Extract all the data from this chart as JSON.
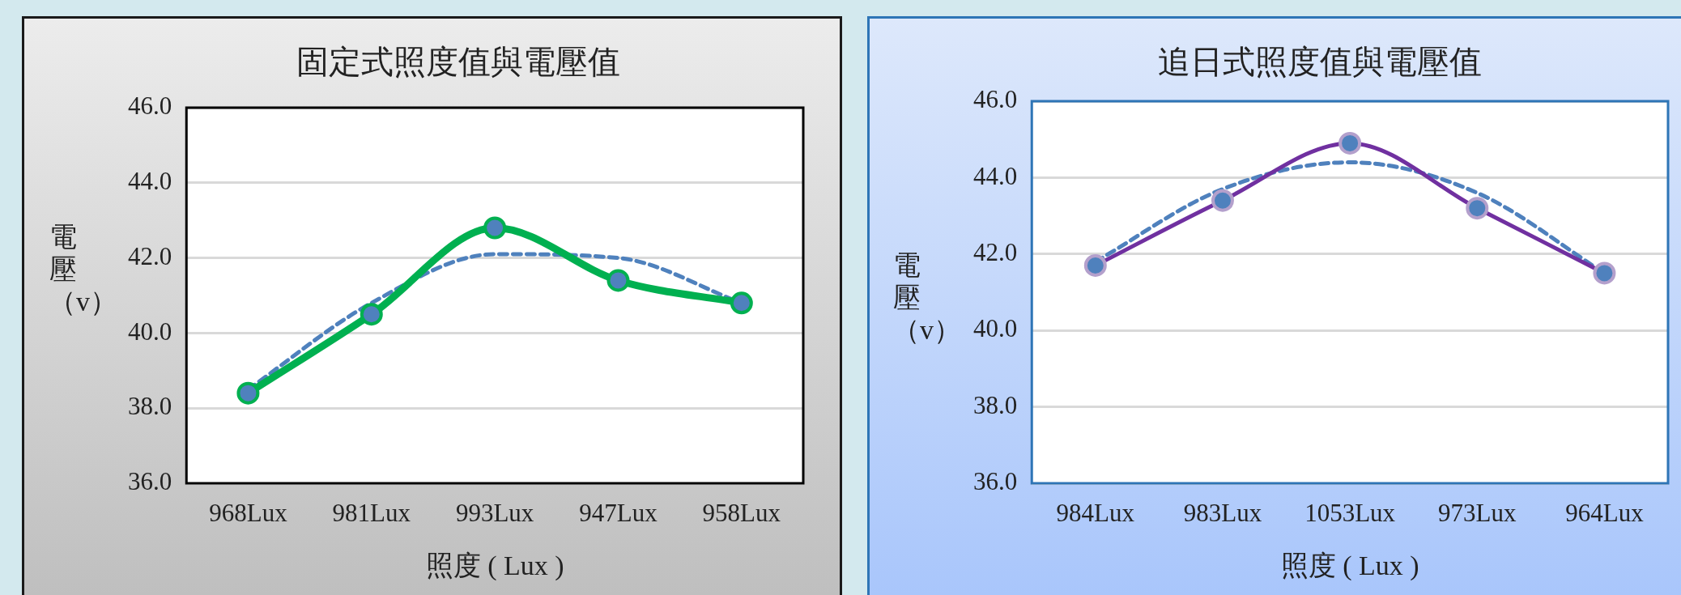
{
  "chart_data": [
    {
      "type": "line",
      "title": "固定式照度值與電壓值",
      "xlabel": "照度 ( Lux )",
      "ylabel": "電壓（v）",
      "categories": [
        "968Lux",
        "981Lux",
        "993Lux",
        "947Lux",
        "958Lux"
      ],
      "series": [
        {
          "color": "#00b050",
          "values": [
            38.4,
            40.5,
            42.8,
            41.4,
            40.8
          ],
          "marker": "circle"
        },
        {
          "color": "#4f81bd",
          "values": [
            38.5,
            40.8,
            42.1,
            42.0,
            40.8
          ],
          "marker": "none",
          "line_style": "dashed"
        }
      ],
      "ylim": [
        36,
        46
      ],
      "yticks": [
        {
          "value": 36,
          "label": "36.0"
        },
        {
          "value": 38,
          "label": "38.0"
        },
        {
          "value": 40,
          "label": "40.0"
        },
        {
          "value": 42,
          "label": "42.0"
        },
        {
          "value": 44,
          "label": "44.0"
        },
        {
          "value": 46,
          "label": "46.0"
        }
      ],
      "grid": "y",
      "legend": false
    },
    {
      "type": "line",
      "title": "追日式照度值與電壓值",
      "xlabel": "照度 ( Lux )",
      "ylabel": "電壓（v）",
      "categories": [
        "984Lux",
        "983Lux",
        "1053Lux",
        "973Lux",
        "964Lux"
      ],
      "series": [
        {
          "color": "#7030a0",
          "values": [
            41.7,
            43.4,
            44.9,
            43.2,
            41.5
          ],
          "marker": "circle"
        },
        {
          "color": "#4f81bd",
          "values": [
            41.8,
            43.7,
            44.4,
            43.6,
            41.5
          ],
          "marker": "none",
          "line_style": "dashed"
        }
      ],
      "ylim": [
        36,
        46
      ],
      "yticks": [
        {
          "value": 36,
          "label": "36.0"
        },
        {
          "value": 38,
          "label": "38.0"
        },
        {
          "value": 40,
          "label": "40.0"
        },
        {
          "value": 42,
          "label": "42.0"
        },
        {
          "value": 44,
          "label": "44.0"
        },
        {
          "value": 46,
          "label": "46.0"
        }
      ],
      "grid": "y",
      "legend": false
    }
  ]
}
